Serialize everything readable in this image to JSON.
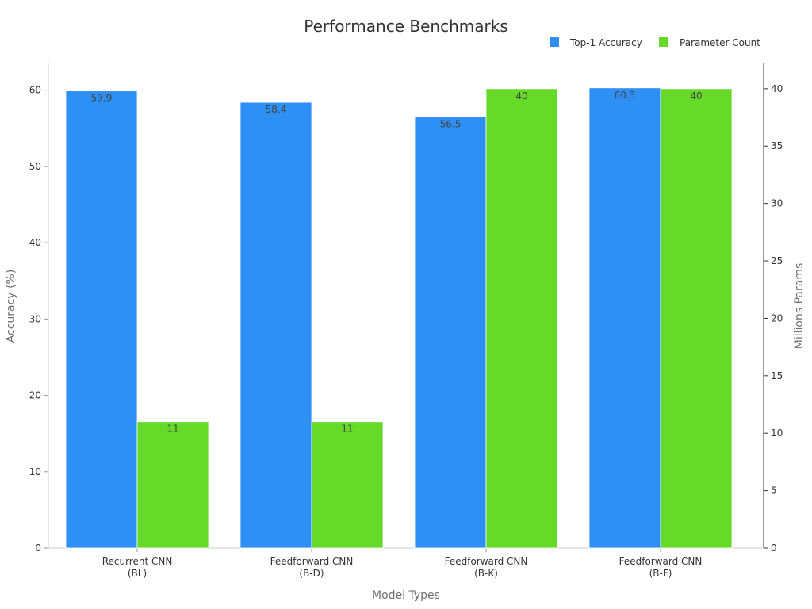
{
  "chart_data": {
    "type": "bar",
    "title": "Performance Benchmarks",
    "xlabel": "Model Types",
    "ylabel": "Accuracy (%)",
    "y2label": "Millions Params",
    "categories": [
      [
        "Recurrent CNN",
        "(BL)"
      ],
      [
        "Feedforward CNN",
        "(B-D)"
      ],
      [
        "Feedforward CNN",
        "(B-K)"
      ],
      [
        "Feedforward CNN",
        "(B-F)"
      ]
    ],
    "series": [
      {
        "name": "Top-1 Accuracy",
        "axis": "left",
        "values": [
          59.9,
          58.4,
          56.5,
          60.3
        ],
        "labels": [
          "59.9",
          "58.4",
          "56.5",
          "60.3"
        ],
        "color": "#2e8ff5"
      },
      {
        "name": "Parameter Count",
        "axis": "right",
        "values": [
          11,
          11,
          40,
          40
        ],
        "labels": [
          "11",
          "11",
          "40",
          "40"
        ],
        "color": "#66da28"
      }
    ],
    "ylim": [
      0,
      63.5
    ],
    "y2lim": [
      0,
      42.2
    ],
    "yticks": [
      0,
      10,
      20,
      30,
      40,
      50,
      60
    ],
    "y2ticks": [
      0,
      5,
      10,
      15,
      20,
      25,
      30,
      35,
      40
    ],
    "legend_position": "top-right",
    "grid": false
  }
}
